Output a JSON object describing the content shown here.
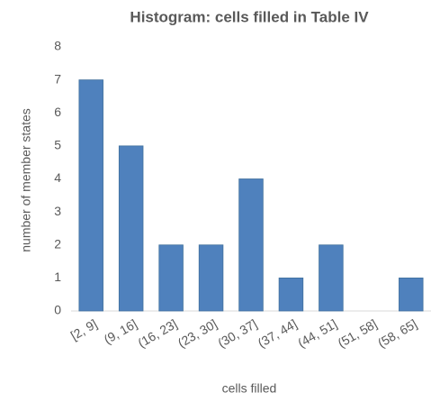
{
  "chart_data": {
    "type": "bar",
    "title": "Histogram: cells filled in Table IV",
    "x_label": "cells filled",
    "y_label": "number of member states",
    "categories": [
      "[2, 9]",
      "(9, 16]",
      "(16, 23]",
      "(23, 30]",
      "(30, 37]",
      "(37, 44]",
      "(44, 51]",
      "(51, 58]",
      "(58, 65]"
    ],
    "values": [
      7,
      5,
      2,
      2,
      4,
      1,
      2,
      0,
      1
    ],
    "color": "#4f81bd",
    "ylim": [
      0,
      8
    ],
    "yticks": [
      0,
      1,
      2,
      3,
      4,
      5,
      6,
      7,
      8
    ],
    "grid": false
  }
}
